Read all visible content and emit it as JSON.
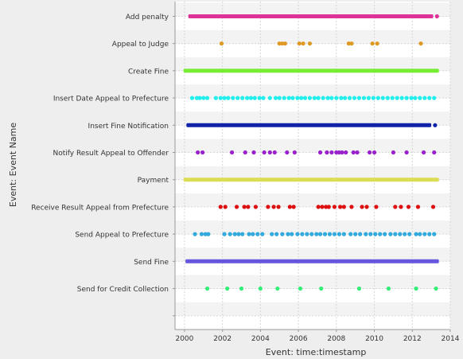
{
  "chart_data": {
    "type": "scatter",
    "title": "",
    "xlabel": "Event: time:timestamp",
    "ylabel": "Event: Event Name",
    "x_range": [
      1999.5,
      2014.0
    ],
    "x_ticks": [
      "2000",
      "2002",
      "2004",
      "2006",
      "2008",
      "2010",
      "2012",
      "2014"
    ],
    "grid": true,
    "categories": [
      "Add penalty",
      "Appeal to Judge",
      "Create Fine",
      "Insert Date Appeal to Prefecture",
      "Insert Fine Notification",
      "Notify Result Appeal to Offender",
      "Payment",
      "Receive Result Appeal from Prefecture",
      "Send Appeal to Prefecture",
      "Send Fine",
      "Send for Credit Collection"
    ],
    "series": [
      {
        "category": "Add penalty",
        "color": "#dd3399",
        "continuous": [
          [
            2000.2,
            2013.1
          ]
        ],
        "points": [
          2013.3
        ]
      },
      {
        "category": "Appeal to Judge",
        "color": "#dd9922",
        "continuous": [],
        "points": [
          2001.95,
          2005.0,
          2005.15,
          2005.3,
          2006.05,
          2006.25,
          2006.6,
          2008.65,
          2008.8,
          2009.9,
          2010.15,
          2012.45
        ]
      },
      {
        "category": "Create Fine",
        "color": "#77ee33",
        "continuous": [
          [
            1999.95,
            2013.4
          ]
        ],
        "points": []
      },
      {
        "category": "Insert Date Appeal to Prefecture",
        "color": "#22eeee",
        "continuous": [],
        "points": [
          2000.4,
          2000.65,
          2000.8,
          2001.0,
          2001.2,
          2001.65,
          2001.9,
          2002.1,
          2002.3,
          2002.55,
          2002.8,
          2003.05,
          2003.3,
          2003.5,
          2003.7,
          2003.95,
          2004.15,
          2004.5,
          2004.8,
          2005.0,
          2005.25,
          2005.5,
          2005.7,
          2005.95,
          2006.15,
          2006.35,
          2006.6,
          2006.85,
          2007.05,
          2007.3,
          2007.55,
          2007.75,
          2008.0,
          2008.25,
          2008.45,
          2008.7,
          2008.95,
          2009.2,
          2009.45,
          2009.7,
          2009.95,
          2010.2,
          2010.45,
          2010.7,
          2010.95,
          2011.2,
          2011.45,
          2011.7,
          2011.95,
          2012.15,
          2012.4,
          2012.65,
          2012.9,
          2013.15
        ]
      },
      {
        "category": "Insert Fine Notification",
        "color": "#1122aa",
        "continuous": [
          [
            2000.1,
            2013.0
          ]
        ],
        "points": [
          2013.2
        ]
      },
      {
        "category": "Notify Result Appeal to Offender",
        "color": "#9922cc",
        "continuous": [],
        "points": [
          2000.7,
          2000.95,
          2002.5,
          2003.2,
          2003.65,
          2004.2,
          2004.5,
          2004.75,
          2005.4,
          2005.8,
          2007.15,
          2007.5,
          2007.75,
          2008.0,
          2008.15,
          2008.3,
          2008.5,
          2008.9,
          2009.1,
          2009.75,
          2010.0,
          2011.0,
          2011.7,
          2012.6,
          2013.15
        ]
      },
      {
        "category": "Payment",
        "color": "#dddd55",
        "continuous": [
          [
            1999.95,
            2013.4
          ]
        ],
        "points": []
      },
      {
        "category": "Receive Result Appeal from Prefecture",
        "color": "#dd1111",
        "continuous": [],
        "points": [
          2001.9,
          2002.15,
          2002.75,
          2003.15,
          2003.35,
          2003.75,
          2004.4,
          2004.7,
          2004.95,
          2005.55,
          2005.75,
          2007.05,
          2007.25,
          2007.45,
          2007.6,
          2007.9,
          2008.2,
          2008.4,
          2008.8,
          2009.35,
          2009.6,
          2010.1,
          2011.1,
          2011.4,
          2011.8,
          2012.3,
          2013.1
        ]
      },
      {
        "category": "Send Appeal to Prefecture",
        "color": "#33aadd",
        "continuous": [],
        "points": [
          2000.55,
          2000.9,
          2001.1,
          2001.25,
          2002.1,
          2002.4,
          2002.65,
          2002.85,
          2003.05,
          2003.4,
          2003.6,
          2003.85,
          2004.1,
          2004.6,
          2004.85,
          2005.15,
          2005.45,
          2005.65,
          2005.95,
          2006.2,
          2006.45,
          2006.7,
          2006.95,
          2007.15,
          2007.4,
          2007.65,
          2007.9,
          2008.15,
          2008.4,
          2008.75,
          2009.0,
          2009.25,
          2009.55,
          2009.8,
          2010.05,
          2010.3,
          2010.55,
          2010.85,
          2011.1,
          2011.35,
          2011.6,
          2011.85,
          2012.2,
          2012.4,
          2012.65,
          2012.9,
          2013.15
        ]
      },
      {
        "category": "Send Fine",
        "color": "#6655dd",
        "continuous": [
          [
            2000.05,
            2013.4
          ]
        ],
        "points": []
      },
      {
        "category": "Send for Credit Collection",
        "color": "#33ee77",
        "continuous": [],
        "points": [
          2001.2,
          2002.25,
          2003.0,
          2004.0,
          2004.9,
          2006.1,
          2007.2,
          2009.2,
          2010.75,
          2012.2,
          2013.25
        ]
      }
    ]
  }
}
